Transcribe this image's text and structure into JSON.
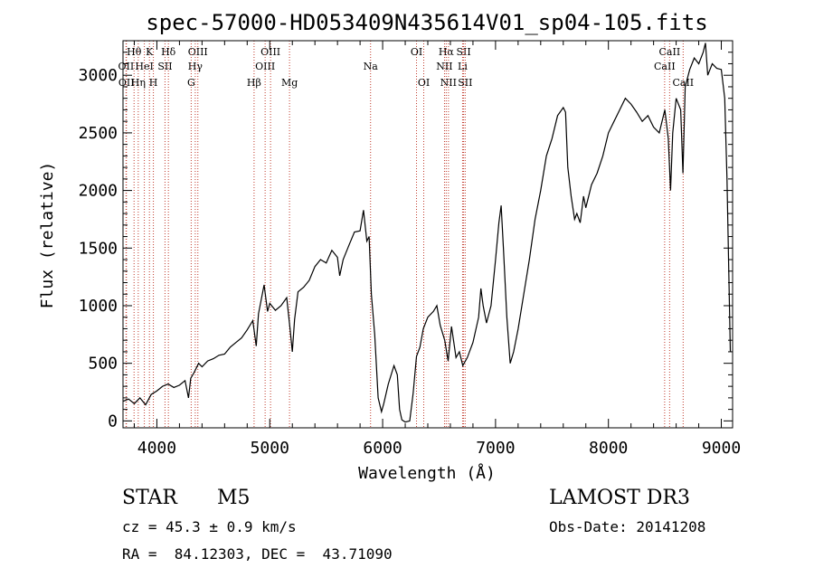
{
  "chart_data": {
    "type": "line",
    "title": "spec-57000-HD053409N435614V01_sp04-105.fits",
    "xlabel": "Wavelength (Å)",
    "ylabel": "Flux (relative)",
    "xlim": [
      3700,
      9100
    ],
    "ylim": [
      -60,
      3300
    ],
    "xticks": [
      4000,
      5000,
      6000,
      7000,
      8000,
      9000
    ],
    "yticks": [
      0,
      500,
      1000,
      1500,
      2000,
      2500,
      3000
    ],
    "series": [
      {
        "name": "flux",
        "points": [
          [
            3700,
            170
          ],
          [
            3750,
            190
          ],
          [
            3800,
            150
          ],
          [
            3850,
            200
          ],
          [
            3900,
            140
          ],
          [
            3950,
            230
          ],
          [
            4000,
            260
          ],
          [
            4050,
            300
          ],
          [
            4100,
            320
          ],
          [
            4150,
            290
          ],
          [
            4200,
            310
          ],
          [
            4250,
            350
          ],
          [
            4280,
            200
          ],
          [
            4300,
            370
          ],
          [
            4330,
            420
          ],
          [
            4370,
            500
          ],
          [
            4400,
            470
          ],
          [
            4450,
            520
          ],
          [
            4500,
            540
          ],
          [
            4550,
            570
          ],
          [
            4600,
            580
          ],
          [
            4650,
            640
          ],
          [
            4700,
            680
          ],
          [
            4750,
            720
          ],
          [
            4800,
            790
          ],
          [
            4850,
            870
          ],
          [
            4880,
            650
          ],
          [
            4900,
            930
          ],
          [
            4950,
            1180
          ],
          [
            4980,
            950
          ],
          [
            5000,
            1020
          ],
          [
            5050,
            960
          ],
          [
            5100,
            1000
          ],
          [
            5150,
            1070
          ],
          [
            5180,
            800
          ],
          [
            5200,
            600
          ],
          [
            5220,
            880
          ],
          [
            5250,
            1120
          ],
          [
            5300,
            1160
          ],
          [
            5350,
            1220
          ],
          [
            5400,
            1340
          ],
          [
            5450,
            1400
          ],
          [
            5500,
            1370
          ],
          [
            5550,
            1480
          ],
          [
            5600,
            1420
          ],
          [
            5620,
            1260
          ],
          [
            5650,
            1400
          ],
          [
            5700,
            1520
          ],
          [
            5750,
            1640
          ],
          [
            5800,
            1650
          ],
          [
            5830,
            1830
          ],
          [
            5860,
            1560
          ],
          [
            5880,
            1600
          ],
          [
            5900,
            1100
          ],
          [
            5930,
            750
          ],
          [
            5960,
            200
          ],
          [
            5990,
            80
          ],
          [
            6010,
            150
          ],
          [
            6050,
            320
          ],
          [
            6100,
            480
          ],
          [
            6130,
            400
          ],
          [
            6150,
            100
          ],
          [
            6170,
            10
          ],
          [
            6200,
            -10
          ],
          [
            6240,
            0
          ],
          [
            6270,
            240
          ],
          [
            6300,
            560
          ],
          [
            6330,
            640
          ],
          [
            6360,
            800
          ],
          [
            6400,
            900
          ],
          [
            6450,
            950
          ],
          [
            6480,
            1000
          ],
          [
            6510,
            830
          ],
          [
            6550,
            700
          ],
          [
            6580,
            520
          ],
          [
            6610,
            820
          ],
          [
            6650,
            550
          ],
          [
            6680,
            600
          ],
          [
            6710,
            480
          ],
          [
            6750,
            550
          ],
          [
            6800,
            680
          ],
          [
            6850,
            900
          ],
          [
            6870,
            1150
          ],
          [
            6890,
            1000
          ],
          [
            6920,
            850
          ],
          [
            6960,
            1000
          ],
          [
            7000,
            1400
          ],
          [
            7030,
            1720
          ],
          [
            7050,
            1870
          ],
          [
            7070,
            1500
          ],
          [
            7100,
            900
          ],
          [
            7130,
            500
          ],
          [
            7160,
            600
          ],
          [
            7200,
            800
          ],
          [
            7250,
            1100
          ],
          [
            7300,
            1400
          ],
          [
            7350,
            1750
          ],
          [
            7400,
            2000
          ],
          [
            7450,
            2300
          ],
          [
            7500,
            2450
          ],
          [
            7550,
            2650
          ],
          [
            7600,
            2720
          ],
          [
            7620,
            2680
          ],
          [
            7640,
            2200
          ],
          [
            7670,
            1950
          ],
          [
            7700,
            1750
          ],
          [
            7720,
            1800
          ],
          [
            7750,
            1720
          ],
          [
            7780,
            1950
          ],
          [
            7800,
            1850
          ],
          [
            7850,
            2050
          ],
          [
            7900,
            2150
          ],
          [
            7950,
            2300
          ],
          [
            8000,
            2500
          ],
          [
            8050,
            2600
          ],
          [
            8100,
            2700
          ],
          [
            8150,
            2800
          ],
          [
            8200,
            2750
          ],
          [
            8250,
            2680
          ],
          [
            8300,
            2600
          ],
          [
            8350,
            2650
          ],
          [
            8400,
            2550
          ],
          [
            8450,
            2500
          ],
          [
            8500,
            2700
          ],
          [
            8530,
            2450
          ],
          [
            8550,
            2000
          ],
          [
            8570,
            2500
          ],
          [
            8600,
            2800
          ],
          [
            8640,
            2700
          ],
          [
            8660,
            2150
          ],
          [
            8680,
            2900
          ],
          [
            8720,
            3050
          ],
          [
            8760,
            3150
          ],
          [
            8800,
            3100
          ],
          [
            8840,
            3200
          ],
          [
            8860,
            3280
          ],
          [
            8880,
            3000
          ],
          [
            8920,
            3100
          ],
          [
            8960,
            3060
          ],
          [
            9000,
            3050
          ],
          [
            9030,
            2800
          ],
          [
            9050,
            2100
          ],
          [
            9080,
            600
          ]
        ]
      }
    ],
    "spectral_lines": [
      {
        "label": "Hθ",
        "wavelength": 3798,
        "row": 1
      },
      {
        "label": "OII",
        "wavelength": 3727,
        "row": 2
      },
      {
        "label": "OII",
        "wavelength": 3730,
        "row": 3
      },
      {
        "label": "K",
        "wavelength": 3934,
        "row": 1
      },
      {
        "label": "HeI",
        "wavelength": 3889,
        "row": 2
      },
      {
        "label": "Hη",
        "wavelength": 3835,
        "row": 3
      },
      {
        "label": "Hδ",
        "wavelength": 4102,
        "row": 1
      },
      {
        "label": "SII",
        "wavelength": 4072,
        "row": 2
      },
      {
        "label": "H",
        "wavelength": 3969,
        "row": 3
      },
      {
        "label": "OIII",
        "wavelength": 4363,
        "row": 1
      },
      {
        "label": "Hγ",
        "wavelength": 4340,
        "row": 2
      },
      {
        "label": "G",
        "wavelength": 4304,
        "row": 3
      },
      {
        "label": "OIII",
        "wavelength": 5007,
        "row": 1
      },
      {
        "label": "OIII",
        "wavelength": 4959,
        "row": 2
      },
      {
        "label": "Hβ",
        "wavelength": 4861,
        "row": 3
      },
      {
        "label": "Mg",
        "wavelength": 5175,
        "row": 3
      },
      {
        "label": "Na",
        "wavelength": 5893,
        "row": 2
      },
      {
        "label": "OI",
        "wavelength": 6300,
        "row": 1
      },
      {
        "label": "OI",
        "wavelength": 6364,
        "row": 3
      },
      {
        "label": "Hα",
        "wavelength": 6563,
        "row": 1
      },
      {
        "label": "SII",
        "wavelength": 6717,
        "row": 1
      },
      {
        "label": "NII",
        "wavelength": 6548,
        "row": 2
      },
      {
        "label": "Li",
        "wavelength": 6708,
        "row": 2
      },
      {
        "label": "NII",
        "wavelength": 6583,
        "row": 3
      },
      {
        "label": "SII",
        "wavelength": 6731,
        "row": 3
      },
      {
        "label": "CaII",
        "wavelength": 8542,
        "row": 1
      },
      {
        "label": "CaII",
        "wavelength": 8498,
        "row": 2
      },
      {
        "label": "CaII",
        "wavelength": 8662,
        "row": 3
      }
    ],
    "colors": {
      "line": "#000000",
      "marker": "#c0392b"
    }
  },
  "info": {
    "obj_class": "STAR",
    "subclass": "M5",
    "survey": "LAMOST DR3",
    "cz": "cz = 45.3 ± 0.9 km/s",
    "obs_date": "Obs-Date: 20141208",
    "coords": "RA =  84.12303, DEC =  43.71090"
  }
}
